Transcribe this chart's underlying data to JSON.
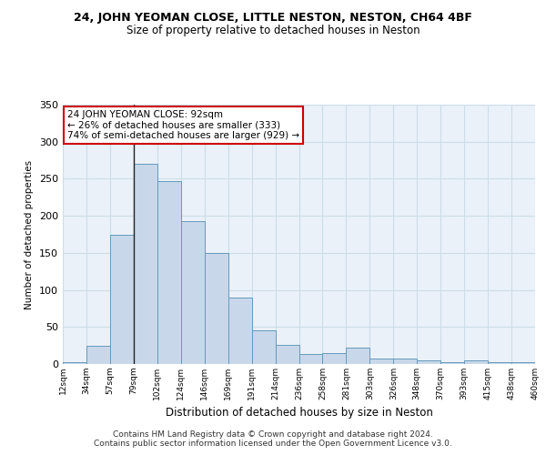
{
  "title1": "24, JOHN YEOMAN CLOSE, LITTLE NESTON, NESTON, CH64 4BF",
  "title2": "Size of property relative to detached houses in Neston",
  "xlabel": "Distribution of detached houses by size in Neston",
  "ylabel": "Number of detached properties",
  "categories": [
    "12sqm",
    "34sqm",
    "57sqm",
    "79sqm",
    "102sqm",
    "124sqm",
    "146sqm",
    "169sqm",
    "191sqm",
    "214sqm",
    "236sqm",
    "258sqm",
    "281sqm",
    "303sqm",
    "326sqm",
    "348sqm",
    "370sqm",
    "393sqm",
    "415sqm",
    "438sqm",
    "460sqm"
  ],
  "values": [
    3,
    25,
    175,
    270,
    247,
    193,
    150,
    90,
    46,
    26,
    13,
    15,
    22,
    7,
    7,
    5,
    3,
    5,
    2,
    3
  ],
  "bar_color": "#c8d8ea",
  "bar_edge_color": "#6699bb",
  "grid_color": "#ccdde8",
  "background_color": "#eaf1f8",
  "annotation_box_text": "24 JOHN YEOMAN CLOSE: 92sqm\n← 26% of detached houses are smaller (333)\n74% of semi-detached houses are larger (929) →",
  "annotation_box_color": "#ffffff",
  "annotation_box_edge_color": "#cc0000",
  "vline_x_index": 3,
  "ylim": [
    0,
    350
  ],
  "yticks": [
    0,
    50,
    100,
    150,
    200,
    250,
    300,
    350
  ],
  "footer": "Contains HM Land Registry data © Crown copyright and database right 2024.\nContains public sector information licensed under the Open Government Licence v3.0."
}
